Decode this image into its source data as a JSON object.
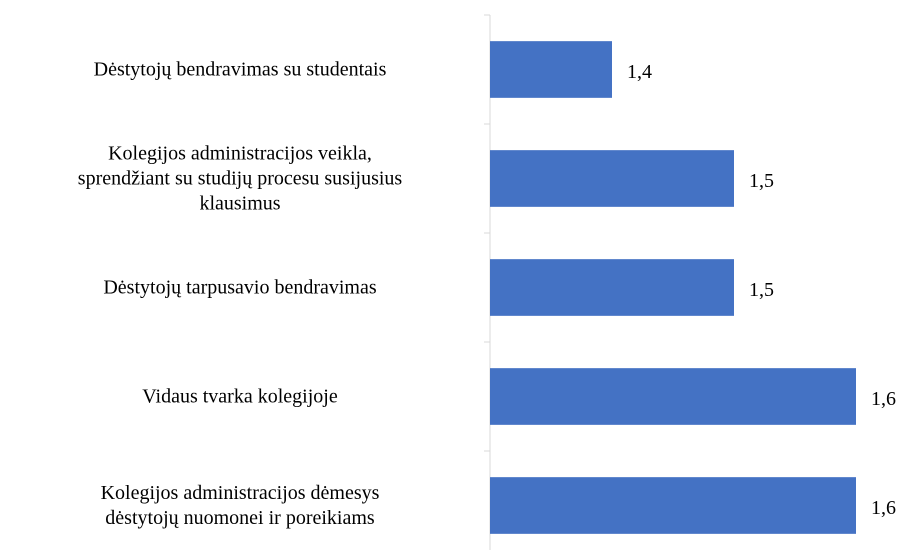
{
  "chart_data": {
    "type": "barh",
    "categories": [
      "Dėstytojų bendravimas su studentais",
      "Kolegijos administracijos veikla,\nsprendžiant su studijų procesu susijusius\nklausimus",
      "Dėstytojų tarpusavio bendravimas",
      "Vidaus tvarka kolegijoje",
      "Kolegijos administracijos dėmesys\ndėstytojų nuomonei ir poreikiams"
    ],
    "values": [
      1.4,
      1.5,
      1.5,
      1.6,
      1.6
    ],
    "value_labels": [
      "1,4",
      "1,5",
      "1,5",
      "1,6",
      "1,6"
    ],
    "color": "#4472c4",
    "xlim": [
      1.3,
      1.63
    ]
  }
}
